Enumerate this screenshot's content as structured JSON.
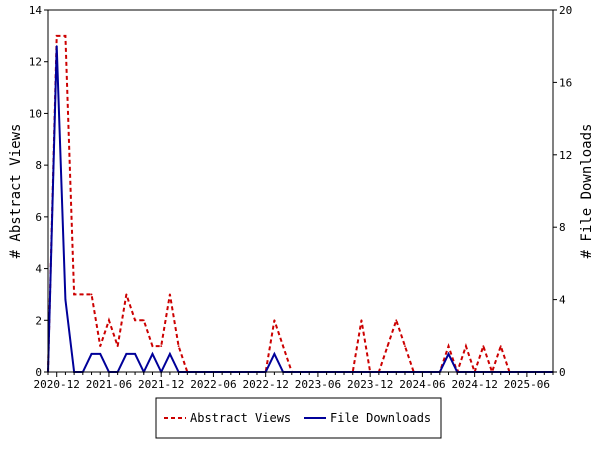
{
  "chart_data": {
    "type": "line",
    "title": "",
    "x_ticks": [
      "2020-12",
      "2021-06",
      "2021-12",
      "2022-06",
      "2022-12",
      "2023-06",
      "2023-12",
      "2024-06",
      "2024-12",
      "2025-06"
    ],
    "y_left": {
      "label": "# Abstract Views",
      "range": [
        0,
        14
      ],
      "ticks": [
        0,
        2,
        4,
        6,
        8,
        10,
        12,
        14
      ]
    },
    "y_right": {
      "label": "# File Downloads",
      "range": [
        0,
        20
      ],
      "ticks": [
        0,
        4,
        8,
        12,
        16,
        20
      ]
    },
    "x": [
      "2020-11",
      "2020-12",
      "2021-01",
      "2021-02",
      "2021-03",
      "2021-04",
      "2021-05",
      "2021-06",
      "2021-07",
      "2021-08",
      "2021-09",
      "2021-10",
      "2021-11",
      "2021-12",
      "2022-01",
      "2022-02",
      "2022-03",
      "2022-04",
      "2022-05",
      "2022-06",
      "2022-07",
      "2022-08",
      "2022-09",
      "2022-10",
      "2022-11",
      "2022-12",
      "2023-01",
      "2023-02",
      "2023-03",
      "2023-04",
      "2023-05",
      "2023-06",
      "2023-07",
      "2023-08",
      "2023-09",
      "2023-10",
      "2023-11",
      "2023-12",
      "2024-01",
      "2024-02",
      "2024-03",
      "2024-04",
      "2024-05",
      "2024-06",
      "2024-07",
      "2024-08",
      "2024-09",
      "2024-10",
      "2024-11",
      "2024-12",
      "2025-01",
      "2025-02",
      "2025-03",
      "2025-04",
      "2025-05",
      "2025-06",
      "2025-07",
      "2025-08",
      "2025-09"
    ],
    "series": [
      {
        "name": "Abstract Views",
        "axis": "left",
        "color": "#cc0000",
        "dash": true,
        "values": [
          0,
          13,
          13,
          3,
          3,
          3,
          1,
          2,
          1,
          3,
          2,
          2,
          1,
          1,
          3,
          1,
          0,
          0,
          0,
          0,
          0,
          0,
          0,
          0,
          0,
          0,
          2,
          1,
          0,
          0,
          0,
          0,
          0,
          0,
          0,
          0,
          2,
          0,
          0,
          1,
          2,
          1,
          0,
          0,
          0,
          0,
          1,
          0,
          1,
          0,
          1,
          0,
          1,
          0,
          0,
          0,
          0,
          0,
          0
        ]
      },
      {
        "name": "File Downloads",
        "axis": "right",
        "color": "#000099",
        "dash": false,
        "values": [
          0,
          18,
          4,
          0,
          0,
          1,
          1,
          0,
          0,
          1,
          1,
          0,
          1,
          0,
          1,
          0,
          0,
          0,
          0,
          0,
          0,
          0,
          0,
          0,
          0,
          0,
          1,
          0,
          0,
          0,
          0,
          0,
          0,
          0,
          0,
          0,
          0,
          0,
          0,
          0,
          0,
          0,
          0,
          0,
          0,
          0,
          1,
          0,
          0,
          0,
          0,
          0,
          0,
          0,
          0,
          0,
          0,
          0,
          0
        ]
      }
    ],
    "legend": {
      "placement": "bottom"
    }
  }
}
